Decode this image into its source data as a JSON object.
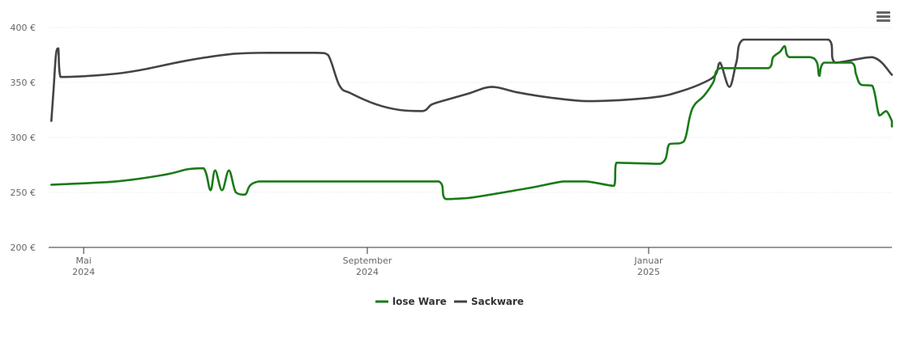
{
  "chart_data": {
    "type": "line",
    "yaxis": {
      "ticks": [
        "200 €",
        "250 €",
        "300 €",
        "350 €",
        "400 €"
      ],
      "ylim": [
        200,
        400
      ],
      "unit": "€"
    },
    "xaxis": {
      "ticks": [
        {
          "label": "Mai",
          "year": "2024",
          "date": "2024-05-01"
        },
        {
          "label": "September",
          "year": "2024",
          "date": "2024-09-01"
        },
        {
          "label": "Januar",
          "year": "2025",
          "date": "2025-01-01"
        }
      ]
    },
    "grid": true,
    "legend": "bottom-center",
    "series": [
      {
        "name": "lose Ware",
        "color": "#1a7a1a",
        "points": [
          [
            "2024-04-17",
            257
          ],
          [
            "2024-05-15",
            260
          ],
          [
            "2024-06-05",
            266
          ],
          [
            "2024-06-15",
            271
          ],
          [
            "2024-06-22",
            272
          ],
          [
            "2024-06-25",
            252
          ],
          [
            "2024-06-27",
            270
          ],
          [
            "2024-06-30",
            252
          ],
          [
            "2024-07-03",
            270
          ],
          [
            "2024-07-06",
            250
          ],
          [
            "2024-07-10",
            248
          ],
          [
            "2024-07-16",
            260
          ],
          [
            "2024-09-15",
            260
          ],
          [
            "2024-10-02",
            260
          ],
          [
            "2024-10-05",
            244
          ],
          [
            "2024-10-15",
            245
          ],
          [
            "2024-11-10",
            254
          ],
          [
            "2024-11-25",
            260
          ],
          [
            "2024-12-05",
            260
          ],
          [
            "2024-12-17",
            256
          ],
          [
            "2024-12-18",
            277
          ],
          [
            "2025-01-06",
            276
          ],
          [
            "2025-01-10",
            294
          ],
          [
            "2025-01-15",
            295
          ],
          [
            "2025-01-17",
            300
          ],
          [
            "2025-01-19",
            320
          ],
          [
            "2025-01-21",
            330
          ],
          [
            "2025-01-25",
            338
          ],
          [
            "2025-01-29",
            350
          ],
          [
            "2025-02-01",
            363
          ],
          [
            "2025-02-22",
            363
          ],
          [
            "2025-02-24",
            373
          ],
          [
            "2025-02-27",
            378
          ],
          [
            "2025-03-01",
            383
          ],
          [
            "2025-03-03",
            373
          ],
          [
            "2025-03-12",
            373
          ],
          [
            "2025-03-15",
            368
          ],
          [
            "2025-03-16",
            356
          ],
          [
            "2025-03-18",
            368
          ],
          [
            "2025-03-30",
            368
          ],
          [
            "2025-04-01",
            357
          ],
          [
            "2025-04-03",
            348
          ],
          [
            "2025-04-08",
            347
          ],
          [
            "2025-04-11",
            320
          ],
          [
            "2025-04-14",
            324
          ],
          [
            "2025-04-17",
            315
          ],
          [
            "2025-04-20",
            315
          ],
          [
            "2025-04-22",
            310
          ]
        ]
      },
      {
        "name": "Sackware",
        "color": "#444444",
        "points": [
          [
            "2024-04-17",
            315
          ],
          [
            "2024-04-18",
            345
          ],
          [
            "2024-04-19",
            375
          ],
          [
            "2024-04-20",
            381
          ],
          [
            "2024-04-21",
            355
          ],
          [
            "2024-05-10",
            357
          ],
          [
            "2024-05-25",
            361
          ],
          [
            "2024-06-15",
            370
          ],
          [
            "2024-07-05",
            376
          ],
          [
            "2024-07-20",
            377
          ],
          [
            "2024-08-10",
            377
          ],
          [
            "2024-08-15",
            375
          ],
          [
            "2024-08-20",
            347
          ],
          [
            "2024-08-25",
            340
          ],
          [
            "2024-09-05",
            330
          ],
          [
            "2024-09-15",
            325
          ],
          [
            "2024-09-25",
            324
          ],
          [
            "2024-09-29",
            330
          ],
          [
            "2024-10-05",
            334
          ],
          [
            "2024-10-15",
            340
          ],
          [
            "2024-10-25",
            346
          ],
          [
            "2024-11-05",
            341
          ],
          [
            "2024-11-20",
            336
          ],
          [
            "2024-12-05",
            333
          ],
          [
            "2024-12-20",
            334
          ],
          [
            "2025-01-05",
            337
          ],
          [
            "2025-01-15",
            342
          ],
          [
            "2025-01-25",
            350
          ],
          [
            "2025-01-30",
            357
          ],
          [
            "2025-02-01",
            368
          ],
          [
            "2025-02-05",
            346
          ],
          [
            "2025-02-08",
            368
          ],
          [
            "2025-02-11",
            389
          ],
          [
            "2025-03-20",
            389
          ],
          [
            "2025-03-23",
            368
          ],
          [
            "2025-04-08",
            373
          ],
          [
            "2025-04-22",
            357
          ]
        ]
      }
    ]
  },
  "toolbar": {
    "menu_icon": "hamburger-menu-icon"
  }
}
